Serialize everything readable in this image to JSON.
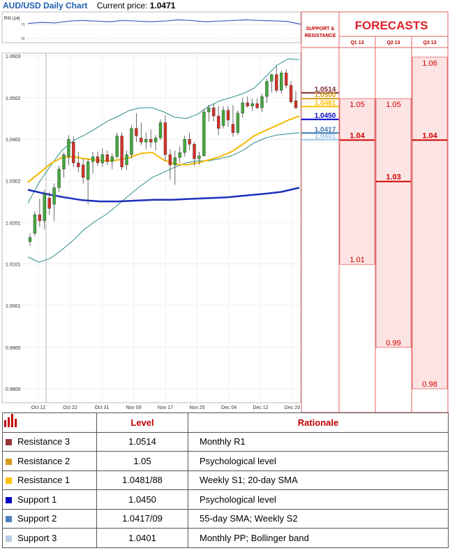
{
  "header": {
    "title": "AUD/USD Daily Chart",
    "price_label": "Current price:",
    "price_value": "1.0471"
  },
  "rsi_panel": {
    "label": "RSI (14)",
    "levels": [
      "70",
      "30"
    ]
  },
  "forecasts": {
    "title": "FORECASTS",
    "sr_title_line1": "SUPPORT &",
    "sr_title_line2": "RESISTANCE",
    "columns": [
      "Q1 13",
      "Q2 13",
      "Q3 13"
    ],
    "ranges": [
      {
        "high": 1.05,
        "low": 1.01,
        "mid": 1.04,
        "high_label": "1.05",
        "low_label": "1.01",
        "mid_label": "1.04"
      },
      {
        "high": 1.05,
        "low": 0.99,
        "mid": 1.03,
        "high_label": "1.05",
        "low_label": "0.99",
        "mid_label": "1.03"
      },
      {
        "high": 1.06,
        "low": 0.98,
        "mid": 1.04,
        "high_label": "1.06",
        "low_label": "0.98",
        "mid_label": "1.04"
      }
    ]
  },
  "sr_levels": [
    {
      "value": 1.0514,
      "label": "1.0514",
      "color": "#7b2a2e"
    },
    {
      "value": 1.05,
      "label": "1.0500",
      "color": "#d4a017"
    },
    {
      "value": 1.0481,
      "label": "1.0481",
      "color": "#ffc000"
    },
    {
      "value": 1.045,
      "label": "1.0450",
      "color": "#0000cc"
    },
    {
      "value": 1.0417,
      "label": "1.0417",
      "color": "#3c78b4"
    },
    {
      "value": 1.0401,
      "label": "1.0401",
      "color": "#9fc5e8"
    }
  ],
  "chart_data": {
    "type": "candlestick",
    "title": "AUD/USD Daily Chart",
    "y_ticks": [
      "1.0603",
      "1.0502",
      "1.0402",
      "1.0302",
      "1.0201",
      "1.0101",
      "1.0001",
      "0.9900",
      "0.9800"
    ],
    "ylim": [
      0.979,
      1.0603
    ],
    "x_ticks": [
      "Oct 12",
      "Oct 22",
      "Oct 31",
      "Nov 09",
      "Nov 17",
      "Nov 25",
      "Dec 04",
      "Dec 12",
      "Dec 20"
    ],
    "candles": [
      {
        "o": 1.0155,
        "h": 1.0175,
        "l": 1.0145,
        "c": 1.0165
      },
      {
        "o": 1.0175,
        "h": 1.0228,
        "l": 1.0168,
        "c": 1.022
      },
      {
        "o": 1.022,
        "h": 1.0258,
        "l": 1.019,
        "c": 1.0205
      },
      {
        "o": 1.0205,
        "h": 1.028,
        "l": 1.0185,
        "c": 1.027
      },
      {
        "o": 1.026,
        "h": 1.0275,
        "l": 1.022,
        "c": 1.0235
      },
      {
        "o": 1.0245,
        "h": 1.0295,
        "l": 1.0205,
        "c": 1.0285
      },
      {
        "o": 1.0285,
        "h": 1.0338,
        "l": 1.0275,
        "c": 1.033
      },
      {
        "o": 1.033,
        "h": 1.037,
        "l": 1.031,
        "c": 1.0365
      },
      {
        "o": 1.036,
        "h": 1.0412,
        "l": 1.034,
        "c": 1.0402
      },
      {
        "o": 1.0395,
        "h": 1.0408,
        "l": 1.0335,
        "c": 1.0345
      },
      {
        "o": 1.0345,
        "h": 1.0372,
        "l": 1.0322,
        "c": 1.0335
      },
      {
        "o": 1.034,
        "h": 1.0355,
        "l": 1.0295,
        "c": 1.031
      },
      {
        "o": 1.0305,
        "h": 1.0355,
        "l": 1.0245,
        "c": 1.0348
      },
      {
        "o": 1.0348,
        "h": 1.0372,
        "l": 1.032,
        "c": 1.036
      },
      {
        "o": 1.036,
        "h": 1.0372,
        "l": 1.0338,
        "c": 1.0345
      },
      {
        "o": 1.0345,
        "h": 1.038,
        "l": 1.0335,
        "c": 1.0365
      },
      {
        "o": 1.0365,
        "h": 1.0375,
        "l": 1.034,
        "c": 1.0348
      },
      {
        "o": 1.0348,
        "h": 1.0368,
        "l": 1.033,
        "c": 1.036
      },
      {
        "o": 1.036,
        "h": 1.0418,
        "l": 1.0355,
        "c": 1.041
      },
      {
        "o": 1.041,
        "h": 1.0418,
        "l": 1.0328,
        "c": 1.0335
      },
      {
        "o": 1.034,
        "h": 1.0375,
        "l": 1.0328,
        "c": 1.0365
      },
      {
        "o": 1.0365,
        "h": 1.0435,
        "l": 1.0355,
        "c": 1.0428
      },
      {
        "o": 1.0428,
        "h": 1.0465,
        "l": 1.0395,
        "c": 1.041
      },
      {
        "o": 1.0405,
        "h": 1.0442,
        "l": 1.0388,
        "c": 1.0395
      },
      {
        "o": 1.0395,
        "h": 1.0418,
        "l": 1.0378,
        "c": 1.0402
      },
      {
        "o": 1.0402,
        "h": 1.0425,
        "l": 1.0382,
        "c": 1.0395
      },
      {
        "o": 1.0395,
        "h": 1.0412,
        "l": 1.0375,
        "c": 1.0405
      },
      {
        "o": 1.0405,
        "h": 1.045,
        "l": 1.04,
        "c": 1.0442
      },
      {
        "o": 1.0442,
        "h": 1.046,
        "l": 1.035,
        "c": 1.0365
      },
      {
        "o": 1.0365,
        "h": 1.0378,
        "l": 1.0305,
        "c": 1.034
      },
      {
        "o": 1.034,
        "h": 1.0375,
        "l": 1.0292,
        "c": 1.0358
      },
      {
        "o": 1.0358,
        "h": 1.0385,
        "l": 1.0345,
        "c": 1.037
      },
      {
        "o": 1.037,
        "h": 1.041,
        "l": 1.036,
        "c": 1.0402
      },
      {
        "o": 1.0402,
        "h": 1.0418,
        "l": 1.0375,
        "c": 1.039
      },
      {
        "o": 1.039,
        "h": 1.0395,
        "l": 1.0338,
        "c": 1.0355
      },
      {
        "o": 1.0355,
        "h": 1.0372,
        "l": 1.034,
        "c": 1.0362
      },
      {
        "o": 1.0362,
        "h": 1.0475,
        "l": 1.036,
        "c": 1.0468
      },
      {
        "o": 1.0468,
        "h": 1.0485,
        "l": 1.0445,
        "c": 1.0478
      },
      {
        "o": 1.0478,
        "h": 1.0488,
        "l": 1.0445,
        "c": 1.0458
      },
      {
        "o": 1.0458,
        "h": 1.0482,
        "l": 1.0412,
        "c": 1.0428
      },
      {
        "o": 1.0435,
        "h": 1.0482,
        "l": 1.0428,
        "c": 1.0472
      },
      {
        "o": 1.0472,
        "h": 1.0482,
        "l": 1.0432,
        "c": 1.0448
      },
      {
        "o": 1.0438,
        "h": 1.0485,
        "l": 1.0408,
        "c": 1.0418
      },
      {
        "o": 1.0418,
        "h": 1.0472,
        "l": 1.0412,
        "c": 1.0465
      },
      {
        "o": 1.0465,
        "h": 1.0502,
        "l": 1.0455,
        "c": 1.049
      },
      {
        "o": 1.049,
        "h": 1.0505,
        "l": 1.0478,
        "c": 1.0482
      },
      {
        "o": 1.0482,
        "h": 1.05,
        "l": 1.047,
        "c": 1.0488
      },
      {
        "o": 1.0488,
        "h": 1.05,
        "l": 1.0475,
        "c": 1.0478
      },
      {
        "o": 1.0478,
        "h": 1.0512,
        "l": 1.0468,
        "c": 1.0505
      },
      {
        "o": 1.0505,
        "h": 1.0548,
        "l": 1.049,
        "c": 1.0542
      },
      {
        "o": 1.0542,
        "h": 1.056,
        "l": 1.0515,
        "c": 1.0558
      },
      {
        "o": 1.0558,
        "h": 1.058,
        "l": 1.0515,
        "c": 1.052
      },
      {
        "o": 1.052,
        "h": 1.0568,
        "l": 1.0512,
        "c": 1.0562
      },
      {
        "o": 1.0562,
        "h": 1.057,
        "l": 1.0525,
        "c": 1.0532
      },
      {
        "o": 1.0532,
        "h": 1.0542,
        "l": 1.0488,
        "c": 1.0492
      },
      {
        "o": 1.0495,
        "h": 1.0518,
        "l": 1.0475,
        "c": 1.0478
      }
    ],
    "bollinger_upper": [
      1.0248,
      1.0298,
      1.0338,
      1.0375,
      1.0398,
      1.0412,
      1.0428,
      1.0445,
      1.0458,
      1.0472,
      1.0478,
      1.0478,
      1.0468,
      1.0455,
      1.0452,
      1.0462,
      1.0482,
      1.0495,
      1.0503,
      1.0512,
      1.0525,
      1.0552,
      1.058,
      1.0596,
      1.0594
    ],
    "bollinger_lower": [
      1.0118,
      1.0105,
      1.0115,
      1.0135,
      1.0158,
      1.0185,
      1.0205,
      1.0222,
      1.0245,
      1.0268,
      1.029,
      1.031,
      1.0322,
      1.0335,
      1.0345,
      1.035,
      1.035,
      1.0355,
      1.0362,
      1.0375,
      1.0393,
      1.0405,
      1.0412,
      1.0415,
      1.0418
    ],
    "sma_20": [
      1.0298,
      1.032,
      1.0343,
      1.0358,
      1.036,
      1.0355,
      1.0352,
      1.035,
      1.0352,
      1.0358,
      1.0368,
      1.037,
      1.0352,
      1.0342,
      1.034,
      1.0345,
      1.0352,
      1.036,
      1.0372,
      1.039,
      1.041,
      1.0423,
      1.0435,
      1.0448,
      1.0458
    ],
    "sma_long": [
      1.028,
      1.027,
      1.0262,
      1.0255,
      1.0252,
      1.0252,
      1.0254,
      1.0256,
      1.0256,
      1.0258,
      1.026,
      1.0262,
      1.0266,
      1.027,
      1.0275,
      1.0285
    ],
    "rsi": [
      62,
      66,
      64,
      70,
      72,
      70,
      68,
      72,
      70,
      68,
      70,
      74,
      72,
      68,
      70,
      72,
      74,
      72,
      71,
      69,
      60
    ]
  },
  "legend_table": {
    "headers": {
      "level": "Level",
      "rationale": "Rationale"
    },
    "rows": [
      {
        "name": "Resistance 3",
        "level": "1.0514",
        "rationale": "Monthly R1",
        "color": "#953735"
      },
      {
        "name": "Resistance 2",
        "level": "1.05",
        "rationale": "Psychological level",
        "color": "#d49a1b"
      },
      {
        "name": "Resistance 1",
        "level": "1.0481/88",
        "rationale": "Weekly S1; 20-day SMA",
        "color": "#ffc000"
      },
      {
        "name": "Support 1",
        "level": "1.0450",
        "rationale": "Psychological level",
        "color": "#0000c0"
      },
      {
        "name": "Support 2",
        "level": "1.0417/09",
        "rationale": "55-day SMA; Weekly S2",
        "color": "#4f81bd"
      },
      {
        "name": "Support 3",
        "level": "1.0401",
        "rationale": "Monthly PP; Bollinger band",
        "color": "#b8cce4"
      }
    ]
  }
}
